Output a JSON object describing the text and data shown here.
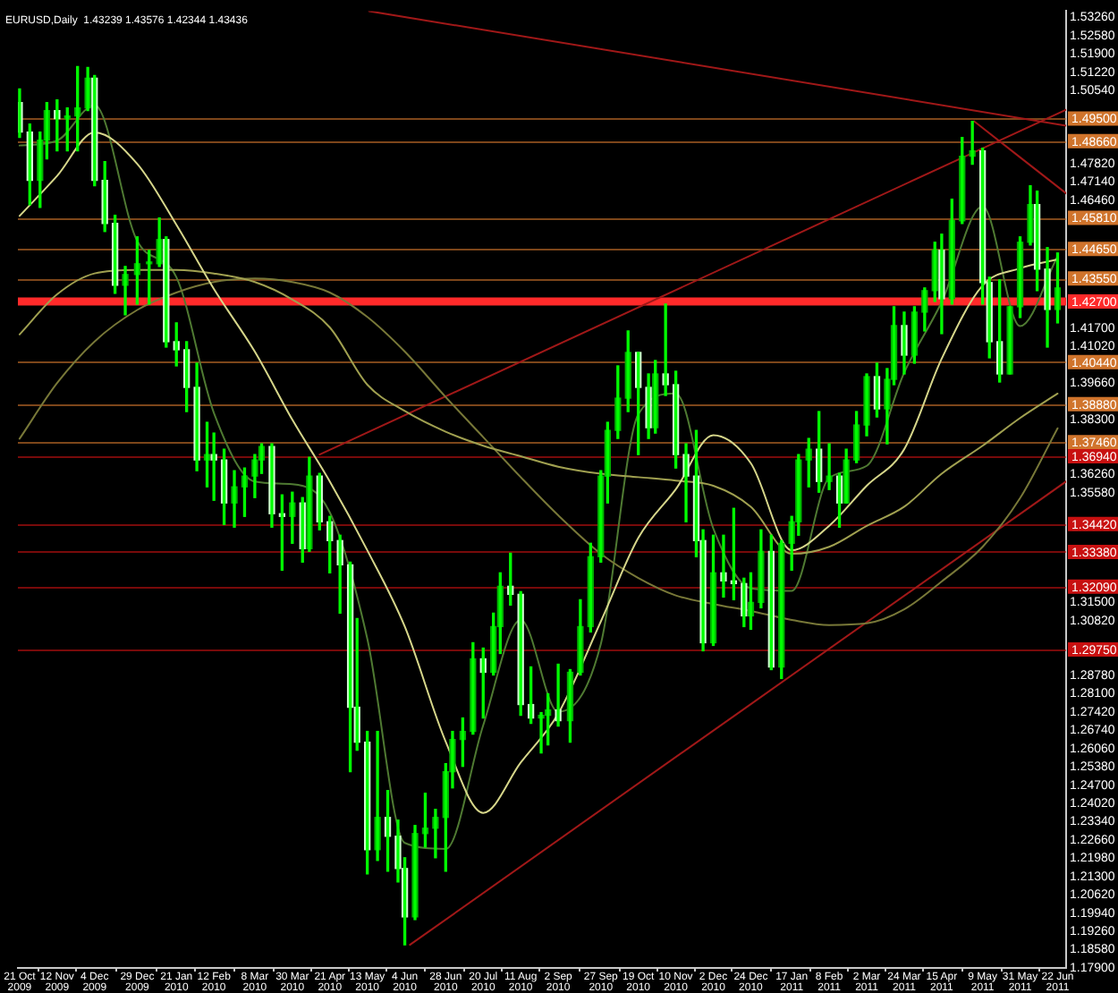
{
  "chart_data": {
    "type": "candlestick",
    "title": "EURUSD,Daily  1.43239 1.43576 1.42344 1.43436",
    "x": [
      "2009-10-21",
      "2009-10-27",
      "2009-11-02",
      "2009-11-06",
      "2009-11-12",
      "2009-11-18",
      "2009-11-24",
      "2009-11-30",
      "2009-12-04",
      "2009-12-10",
      "2009-12-16",
      "2009-12-22",
      "2009-12-29",
      "2010-01-05",
      "2010-01-11",
      "2010-01-15",
      "2010-01-21",
      "2010-01-27",
      "2010-02-02",
      "2010-02-08",
      "2010-02-12",
      "2010-02-18",
      "2010-02-24",
      "2010-03-02",
      "2010-03-08",
      "2010-03-12",
      "2010-03-18",
      "2010-03-24",
      "2010-03-30",
      "2010-04-05",
      "2010-04-09",
      "2010-04-15",
      "2010-04-21",
      "2010-04-27",
      "2010-05-03",
      "2010-05-07",
      "2010-05-13",
      "2010-05-19",
      "2010-05-25",
      "2010-05-31",
      "2010-06-04",
      "2010-06-10",
      "2010-06-16",
      "2010-06-22",
      "2010-06-28",
      "2010-07-02",
      "2010-07-08",
      "2010-07-14",
      "2010-07-20",
      "2010-07-26",
      "2010-07-30",
      "2010-08-05",
      "2010-08-11",
      "2010-08-17",
      "2010-08-23",
      "2010-08-27",
      "2010-09-02",
      "2010-09-09",
      "2010-09-15",
      "2010-09-21",
      "2010-09-27",
      "2010-10-01",
      "2010-10-07",
      "2010-10-13",
      "2010-10-19",
      "2010-10-25",
      "2010-10-29",
      "2010-11-04",
      "2010-11-10",
      "2010-11-16",
      "2010-11-22",
      "2010-11-26",
      "2010-12-02",
      "2010-12-08",
      "2010-12-14",
      "2010-12-20",
      "2010-12-24",
      "2010-12-30",
      "2011-01-05",
      "2011-01-11",
      "2011-01-17",
      "2011-01-21",
      "2011-01-27",
      "2011-02-02",
      "2011-02-08",
      "2011-02-14",
      "2011-02-18",
      "2011-02-24",
      "2011-03-02",
      "2011-03-08",
      "2011-03-14",
      "2011-03-18",
      "2011-03-24",
      "2011-03-30",
      "2011-04-05",
      "2011-04-11",
      "2011-04-15",
      "2011-04-21",
      "2011-04-27",
      "2011-05-03",
      "2011-05-09",
      "2011-05-13",
      "2011-05-19",
      "2011-05-25",
      "2011-05-31",
      "2011-06-06",
      "2011-06-10",
      "2011-06-16",
      "2011-06-22"
    ],
    "ohlc": [
      [
        1.501,
        1.506,
        1.488,
        1.49
      ],
      [
        1.49,
        1.493,
        1.463,
        1.472
      ],
      [
        1.472,
        1.49,
        1.462,
        1.487
      ],
      [
        1.487,
        1.501,
        1.48,
        1.498
      ],
      [
        1.498,
        1.502,
        1.483,
        1.495
      ],
      [
        1.495,
        1.499,
        1.483,
        1.496
      ],
      [
        1.496,
        1.5144,
        1.483,
        1.499
      ],
      [
        1.499,
        1.514,
        1.498,
        1.51
      ],
      [
        1.51,
        1.511,
        1.47,
        1.472
      ],
      [
        1.472,
        1.479,
        1.453,
        1.456
      ],
      [
        1.456,
        1.459,
        1.43,
        1.433
      ],
      [
        1.433,
        1.44,
        1.422,
        1.437
      ],
      [
        1.437,
        1.451,
        1.426,
        1.441
      ],
      [
        1.441,
        1.446,
        1.426,
        1.441
      ],
      [
        1.441,
        1.458,
        1.44,
        1.45
      ],
      [
        1.45,
        1.451,
        1.41,
        1.412
      ],
      [
        1.412,
        1.419,
        1.403,
        1.409
      ],
      [
        1.409,
        1.412,
        1.386,
        1.395
      ],
      [
        1.395,
        1.404,
        1.364,
        1.368
      ],
      [
        1.368,
        1.382,
        1.358,
        1.37
      ],
      [
        1.37,
        1.378,
        1.353,
        1.368
      ],
      [
        1.368,
        1.372,
        1.344,
        1.352
      ],
      [
        1.352,
        1.364,
        1.343,
        1.358
      ],
      [
        1.358,
        1.365,
        1.347,
        1.362
      ],
      [
        1.362,
        1.37,
        1.354,
        1.368
      ],
      [
        1.368,
        1.374,
        1.363,
        1.373
      ],
      [
        1.373,
        1.374,
        1.343,
        1.348
      ],
      [
        1.348,
        1.355,
        1.327,
        1.347
      ],
      [
        1.347,
        1.356,
        1.337,
        1.352
      ],
      [
        1.352,
        1.354,
        1.33,
        1.335
      ],
      [
        1.335,
        1.369,
        1.334,
        1.362
      ],
      [
        1.362,
        1.363,
        1.342,
        1.345
      ],
      [
        1.345,
        1.347,
        1.326,
        1.338
      ],
      [
        1.338,
        1.34,
        1.311,
        1.329
      ],
      [
        1.329,
        1.33,
        1.252,
        1.276
      ],
      [
        1.276,
        1.309,
        1.26,
        1.263
      ],
      [
        1.263,
        1.267,
        1.214,
        1.223
      ],
      [
        1.223,
        1.267,
        1.219,
        1.235
      ],
      [
        1.235,
        1.245,
        1.215,
        1.228
      ],
      [
        1.228,
        1.234,
        1.211,
        1.216
      ],
      [
        1.216,
        1.22,
        1.1876,
        1.198
      ],
      [
        1.198,
        1.232,
        1.197,
        1.229
      ],
      [
        1.229,
        1.244,
        1.224,
        1.231
      ],
      [
        1.231,
        1.238,
        1.22,
        1.235
      ],
      [
        1.235,
        1.255,
        1.215,
        1.252
      ],
      [
        1.252,
        1.267,
        1.246,
        1.264
      ],
      [
        1.264,
        1.272,
        1.254,
        1.267
      ],
      [
        1.267,
        1.3,
        1.266,
        1.294
      ],
      [
        1.294,
        1.298,
        1.272,
        1.289
      ],
      [
        1.289,
        1.311,
        1.288,
        1.306
      ],
      [
        1.306,
        1.326,
        1.296,
        1.321
      ],
      [
        1.321,
        1.3333,
        1.314,
        1.318
      ],
      [
        1.318,
        1.319,
        1.273,
        1.277
      ],
      [
        1.277,
        1.291,
        1.27,
        1.272
      ],
      [
        1.272,
        1.274,
        1.259,
        1.273
      ],
      [
        1.273,
        1.281,
        1.262,
        1.275
      ],
      [
        1.275,
        1.292,
        1.269,
        1.271
      ],
      [
        1.271,
        1.29,
        1.263,
        1.289
      ],
      [
        1.289,
        1.316,
        1.288,
        1.306
      ],
      [
        1.306,
        1.337,
        1.304,
        1.332
      ],
      [
        1.332,
        1.364,
        1.33,
        1.362
      ],
      [
        1.362,
        1.382,
        1.352,
        1.379
      ],
      [
        1.379,
        1.403,
        1.376,
        1.391
      ],
      [
        1.391,
        1.416,
        1.386,
        1.408
      ],
      [
        1.408,
        1.408,
        1.37,
        1.395
      ],
      [
        1.395,
        1.4,
        1.376,
        1.38
      ],
      [
        1.38,
        1.405,
        1.378,
        1.4
      ],
      [
        1.4,
        1.426,
        1.392,
        1.396
      ],
      [
        1.396,
        1.401,
        1.365,
        1.37
      ],
      [
        1.37,
        1.374,
        1.345,
        1.362
      ],
      [
        1.362,
        1.379,
        1.332,
        1.338
      ],
      [
        1.338,
        1.342,
        1.297,
        1.3
      ],
      [
        1.3,
        1.34,
        1.299,
        1.326
      ],
      [
        1.326,
        1.34,
        1.317,
        1.323
      ],
      [
        1.323,
        1.35,
        1.316,
        1.322
      ],
      [
        1.322,
        1.324,
        1.306,
        1.31
      ],
      [
        1.31,
        1.326,
        1.305,
        1.315
      ],
      [
        1.315,
        1.342,
        1.313,
        1.334
      ],
      [
        1.334,
        1.34,
        1.29,
        1.291
      ],
      [
        1.291,
        1.338,
        1.2867,
        1.337
      ],
      [
        1.337,
        1.347,
        1.327,
        1.345
      ],
      [
        1.345,
        1.37,
        1.34,
        1.368
      ],
      [
        1.368,
        1.376,
        1.358,
        1.372
      ],
      [
        1.372,
        1.386,
        1.356,
        1.36
      ],
      [
        1.36,
        1.374,
        1.357,
        1.362
      ],
      [
        1.362,
        1.363,
        1.343,
        1.352
      ],
      [
        1.352,
        1.372,
        1.352,
        1.368
      ],
      [
        1.368,
        1.386,
        1.367,
        1.381
      ],
      [
        1.381,
        1.4,
        1.377,
        1.399
      ],
      [
        1.399,
        1.404,
        1.384,
        1.387
      ],
      [
        1.387,
        1.402,
        1.374,
        1.398
      ],
      [
        1.398,
        1.425,
        1.396,
        1.418
      ],
      [
        1.418,
        1.423,
        1.4,
        1.407
      ],
      [
        1.407,
        1.425,
        1.404,
        1.423
      ],
      [
        1.423,
        1.432,
        1.416,
        1.431
      ],
      [
        1.431,
        1.449,
        1.427,
        1.446
      ],
      [
        1.446,
        1.452,
        1.415,
        1.428
      ],
      [
        1.428,
        1.465,
        1.426,
        1.457
      ],
      [
        1.457,
        1.488,
        1.456,
        1.481
      ],
      [
        1.481,
        1.494,
        1.478,
        1.483
      ],
      [
        1.483,
        1.484,
        1.426,
        1.434
      ],
      [
        1.434,
        1.436,
        1.406,
        1.412
      ],
      [
        1.412,
        1.435,
        1.397,
        1.4
      ],
      [
        1.4,
        1.425,
        1.4,
        1.425
      ],
      [
        1.425,
        1.451,
        1.421,
        1.449
      ],
      [
        1.449,
        1.47,
        1.448,
        1.463
      ],
      [
        1.463,
        1.468,
        1.431,
        1.439
      ],
      [
        1.439,
        1.447,
        1.41,
        1.424
      ],
      [
        1.424,
        1.445,
        1.419,
        1.432
      ]
    ],
    "color": "#00ff00",
    "colors": [
      "#d0ffd0",
      "#d0ffd0",
      "#00b400",
      "#00b400",
      "#d0ffd0",
      "#00b400",
      "#00b400",
      "#00b400",
      "#d0ffd0",
      "#d0ffd0",
      "#d0ffd0",
      "#00b400",
      "#00b400",
      "#00b400",
      "#00b400",
      "#d0ffd0",
      "#d0ffd0",
      "#d0ffd0",
      "#d0ffd0",
      "#00b400",
      "#d0ffd0",
      "#d0ffd0",
      "#00b400",
      "#00b400",
      "#00b400",
      "#00b400",
      "#d0ffd0",
      "#d0ffd0",
      "#00b400",
      "#d0ffd0",
      "#00b400",
      "#d0ffd0",
      "#d0ffd0",
      "#d0ffd0",
      "#d0ffd0",
      "#d0ffd0",
      "#d0ffd0",
      "#00b400",
      "#d0ffd0",
      "#d0ffd0",
      "#d0ffd0",
      "#00b400",
      "#00b400",
      "#00b400",
      "#00b400",
      "#00b400",
      "#00b400",
      "#00b400",
      "#d0ffd0",
      "#00b400",
      "#00b400",
      "#d0ffd0",
      "#d0ffd0",
      "#d0ffd0",
      "#00b400",
      "#00b400",
      "#d0ffd0",
      "#00b400",
      "#00b400",
      "#00b400",
      "#00b400",
      "#00b400",
      "#00b400",
      "#00b400",
      "#d0ffd0",
      "#d0ffd0",
      "#00b400",
      "#d0ffd0",
      "#d0ffd0",
      "#d0ffd0",
      "#d0ffd0",
      "#d0ffd0",
      "#00b400",
      "#d0ffd0",
      "#d0ffd0",
      "#d0ffd0",
      "#00b400",
      "#00b400",
      "#d0ffd0",
      "#00b400",
      "#00b400",
      "#00b400",
      "#00b400",
      "#d0ffd0",
      "#00b400",
      "#d0ffd0",
      "#00b400",
      "#00b400",
      "#00b400",
      "#d0ffd0",
      "#00b400",
      "#00b400",
      "#d0ffd0",
      "#00b400",
      "#00b400",
      "#00b400",
      "#d0ffd0",
      "#00b400",
      "#00b400",
      "#00b400",
      "#d0ffd0",
      "#d0ffd0",
      "#d0ffd0",
      "#00b400",
      "#00b400",
      "#00b400",
      "#d0ffd0",
      "#d0ffd0",
      "#00b400"
    ],
    "series": [
      {
        "type": "line",
        "color": "#d6d68a",
        "x": [
          "2009-10-21",
          "2009-11-12",
          "2009-12-04",
          "2009-12-29",
          "2010-01-21",
          "2010-02-12",
          "2010-03-08",
          "2010-03-30",
          "2010-04-21",
          "2010-05-13",
          "2010-06-04",
          "2010-06-28",
          "2010-07-20",
          "2010-08-11",
          "2010-09-02",
          "2010-09-27",
          "2010-10-19",
          "2010-11-10",
          "2010-12-02",
          "2010-12-24",
          "2011-01-17",
          "2011-02-08",
          "2011-03-02",
          "2011-03-24",
          "2011-04-15",
          "2011-05-09",
          "2011-05-31",
          "2011-06-22"
        ],
        "values": [
          1.4588,
          1.4737,
          1.4899,
          1.4782,
          1.4555,
          1.4316,
          1.4083,
          1.383,
          1.36,
          1.3344,
          1.306,
          1.2632,
          1.2367,
          1.2554,
          1.2736,
          1.3079,
          1.339,
          1.3571,
          1.3772,
          1.3668,
          1.3344,
          1.3435,
          1.3584,
          1.372,
          1.4057,
          1.4329,
          1.4393,
          1.4426
        ]
      },
      {
        "type": "line",
        "color": "#a0a050",
        "x": [
          "2009-10-21",
          "2009-11-12",
          "2009-12-04",
          "2009-12-29",
          "2010-01-21",
          "2010-02-12",
          "2010-03-08",
          "2010-03-30",
          "2010-04-21",
          "2010-05-13",
          "2010-06-04",
          "2010-06-28",
          "2010-07-20",
          "2010-08-11",
          "2010-09-02",
          "2010-09-27",
          "2010-10-19",
          "2010-11-10",
          "2010-12-02",
          "2010-12-24",
          "2011-01-17",
          "2011-02-08",
          "2011-03-02",
          "2011-03-24",
          "2011-04-15",
          "2011-05-09",
          "2011-05-31",
          "2011-06-22"
        ],
        "values": [
          1.4147,
          1.4296,
          1.4374,
          1.4387,
          1.4387,
          1.4374,
          1.4342,
          1.4277,
          1.4173,
          1.396,
          1.3862,
          1.3785,
          1.3733,
          1.3694,
          1.3655,
          1.3629,
          1.3616,
          1.3603,
          1.3584,
          1.3506,
          1.3331,
          1.3357,
          1.3435,
          1.3506,
          1.3629,
          1.3733,
          1.3836,
          1.3927
        ]
      },
      {
        "type": "line",
        "color": "#787838",
        "x": [
          "2009-10-21",
          "2009-11-12",
          "2009-12-04",
          "2009-12-29",
          "2010-01-21",
          "2010-02-12",
          "2010-03-08",
          "2010-03-30",
          "2010-04-21",
          "2010-05-13",
          "2010-06-04",
          "2010-06-28",
          "2010-07-20",
          "2010-08-11",
          "2010-09-02",
          "2010-09-27",
          "2010-10-19",
          "2010-11-10",
          "2010-12-02",
          "2010-12-24",
          "2011-01-17",
          "2011-02-08",
          "2011-03-02",
          "2011-03-24",
          "2011-04-15",
          "2011-05-09",
          "2011-05-31",
          "2011-06-22"
        ],
        "values": [
          1.3759,
          1.3966,
          1.4121,
          1.4238,
          1.4303,
          1.4342,
          1.4355,
          1.4342,
          1.4303,
          1.4212,
          1.4083,
          1.3914,
          1.3765,
          1.3616,
          1.3474,
          1.3331,
          1.3241,
          1.3176,
          1.3144,
          1.3118,
          1.3085,
          1.3066,
          1.3072,
          1.3124,
          1.3228,
          1.3357,
          1.3538,
          1.3798
        ]
      },
      {
        "type": "line",
        "color": "#4f7a32",
        "x": [
          "2009-10-21",
          "2009-11-12",
          "2009-12-04",
          "2009-12-29",
          "2010-01-21",
          "2010-02-12",
          "2010-03-08",
          "2010-03-30",
          "2010-04-21",
          "2010-05-13",
          "2010-06-04",
          "2010-06-28",
          "2010-07-20",
          "2010-08-11",
          "2010-09-02",
          "2010-09-27",
          "2010-10-19",
          "2010-11-10",
          "2010-12-02",
          "2010-12-24",
          "2011-01-17",
          "2011-02-08",
          "2011-03-02",
          "2011-03-24",
          "2011-04-15",
          "2011-05-09",
          "2011-05-31",
          "2011-06-22"
        ],
        "values": [
          1.485,
          1.4868,
          1.5,
          1.4495,
          1.436,
          1.3855,
          1.36,
          1.359,
          1.3485,
          1.3015,
          1.2255,
          1.2233,
          1.2693,
          1.3085,
          1.2743,
          1.2995,
          1.385,
          1.3928,
          1.3425,
          1.3203,
          1.3193,
          1.3613,
          1.3658,
          1.4005,
          1.4268,
          1.4623,
          1.4178,
          1.4438
        ]
      },
      {
        "type": "line",
        "color": "#a01818",
        "x": [
          "2010-05-14",
          "2011-06-27"
        ],
        "values": [
          1.535,
          1.4924
        ]
      },
      {
        "type": "line",
        "color": "#a01818",
        "x": [
          "2010-04-15",
          "2011-06-27"
        ],
        "values": [
          1.37,
          1.4983
        ]
      },
      {
        "type": "line",
        "color": "#a01818",
        "x": [
          "2010-06-07",
          "2011-06-27"
        ],
        "values": [
          1.1876,
          1.36
        ]
      },
      {
        "type": "line",
        "color": "#a01818",
        "x": [
          "2011-05-04",
          "2011-06-27"
        ],
        "values": [
          1.494,
          1.4672
        ]
      }
    ],
    "xlim": [
      "2009-10-20",
      "2011-06-27"
    ],
    "xticks": [
      {
        "value": "2009-10-21",
        "label": "21 Oct 2009"
      },
      {
        "value": "2009-11-12",
        "label": "12 Nov 2009"
      },
      {
        "value": "2009-12-04",
        "label": "4 Dec 2009"
      },
      {
        "value": "2009-12-29",
        "label": "29 Dec 2009"
      },
      {
        "value": "2010-01-21",
        "label": "21 Jan 2010"
      },
      {
        "value": "2010-02-12",
        "label": "12 Feb 2010"
      },
      {
        "value": "2010-03-08",
        "label": "8 Mar 2010"
      },
      {
        "value": "2010-03-30",
        "label": "30 Mar 2010"
      },
      {
        "value": "2010-04-21",
        "label": "21 Apr 2010"
      },
      {
        "value": "2010-05-13",
        "label": "13 May 2010"
      },
      {
        "value": "2010-06-04",
        "label": "4 Jun 2010"
      },
      {
        "value": "2010-06-28",
        "label": "28 Jun 2010"
      },
      {
        "value": "2010-07-20",
        "label": "20 Jul 2010"
      },
      {
        "value": "2010-08-11",
        "label": "11 Aug 2010"
      },
      {
        "value": "2010-09-02",
        "label": "2 Sep 2010"
      },
      {
        "value": "2010-09-27",
        "label": "27 Sep 2010"
      },
      {
        "value": "2010-10-19",
        "label": "19 Oct 2010"
      },
      {
        "value": "2010-11-10",
        "label": "10 Nov 2010"
      },
      {
        "value": "2010-12-02",
        "label": "2 Dec 2010"
      },
      {
        "value": "2010-12-24",
        "label": "24 Dec 2010"
      },
      {
        "value": "2011-01-17",
        "label": "17 Jan 2011"
      },
      {
        "value": "2011-02-08",
        "label": "8 Feb 2011"
      },
      {
        "value": "2011-03-02",
        "label": "2 Mar 2011"
      },
      {
        "value": "2011-03-24",
        "label": "24 Mar 2011"
      },
      {
        "value": "2011-04-15",
        "label": "15 Apr 2011"
      },
      {
        "value": "2011-05-09",
        "label": "9 May 2011"
      },
      {
        "value": "2011-05-31",
        "label": "31 May 2011"
      },
      {
        "value": "2011-06-22",
        "label": "22 Jun 2011"
      }
    ],
    "ylim": [
      1.179,
      1.535
    ],
    "yticks": [
      {
        "value": 1.179,
        "label": "1.17900"
      },
      {
        "value": 1.1858,
        "label": "1.18580"
      },
      {
        "value": 1.1926,
        "label": "1.19260"
      },
      {
        "value": 1.1994,
        "label": "1.19940"
      },
      {
        "value": 1.2062,
        "label": "1.20620"
      },
      {
        "value": 1.213,
        "label": "1.21300"
      },
      {
        "value": 1.2198,
        "label": "1.21980"
      },
      {
        "value": 1.2266,
        "label": "1.22660"
      },
      {
        "value": 1.2334,
        "label": "1.23340"
      },
      {
        "value": 1.2402,
        "label": "1.24020"
      },
      {
        "value": 1.247,
        "label": "1.24700"
      },
      {
        "value": 1.2538,
        "label": "1.25380"
      },
      {
        "value": 1.2606,
        "label": "1.26060"
      },
      {
        "value": 1.2674,
        "label": "1.26740"
      },
      {
        "value": 1.2742,
        "label": "1.27420"
      },
      {
        "value": 1.281,
        "label": "1.28100"
      },
      {
        "value": 1.2878,
        "label": "1.28780"
      },
      {
        "value": 1.3082,
        "label": "1.30820"
      },
      {
        "value": 1.315,
        "label": "1.31500"
      },
      {
        "value": 1.3558,
        "label": "1.35580"
      },
      {
        "value": 1.3626,
        "label": "1.36260"
      },
      {
        "value": 1.383,
        "label": "1.38300"
      },
      {
        "value": 1.3966,
        "label": "1.39660"
      },
      {
        "value": 1.4102,
        "label": "1.41020"
      },
      {
        "value": 1.417,
        "label": "1.41700"
      },
      {
        "value": 1.4646,
        "label": "1.46460"
      },
      {
        "value": 1.4714,
        "label": "1.47140"
      },
      {
        "value": 1.4782,
        "label": "1.47820"
      },
      {
        "value": 1.5054,
        "label": "1.50540"
      },
      {
        "value": 1.5122,
        "label": "1.51220"
      },
      {
        "value": 1.519,
        "label": "1.51900"
      },
      {
        "value": 1.5258,
        "label": "1.52580"
      },
      {
        "value": 1.5326,
        "label": "1.53260"
      }
    ],
    "ref_lines": [
      {
        "axis": "y",
        "value": 1.495,
        "label": "1.49500",
        "color": "#d0742c"
      },
      {
        "axis": "y",
        "value": 1.4866,
        "label": "1.48660",
        "color": "#d0742c"
      },
      {
        "axis": "y",
        "value": 1.4581,
        "label": "1.45810",
        "color": "#d0742c"
      },
      {
        "axis": "y",
        "value": 1.4465,
        "label": "1.44650",
        "color": "#d0742c"
      },
      {
        "axis": "y",
        "value": 1.4355,
        "label": "1.43550",
        "color": "#d0742c"
      },
      {
        "axis": "y",
        "value": 1.4044,
        "label": "1.40440",
        "color": "#d0742c"
      },
      {
        "axis": "y",
        "value": 1.3888,
        "label": "1.38880",
        "color": "#d0742c"
      },
      {
        "axis": "y",
        "value": 1.3746,
        "label": "1.37460",
        "color": "#d0742c"
      },
      {
        "axis": "y",
        "value": 1.3694,
        "label": "1.36940",
        "color": "#c81010"
      },
      {
        "axis": "y",
        "value": 1.3442,
        "label": "1.34420",
        "color": "#c81010"
      },
      {
        "axis": "y",
        "value": 1.3338,
        "label": "1.33380",
        "color": "#c81010"
      },
      {
        "axis": "y",
        "value": 1.3209,
        "label": "1.32090",
        "color": "#c81010"
      },
      {
        "axis": "y",
        "value": 1.2975,
        "label": "1.29750",
        "color": "#c81010"
      }
    ],
    "bands": [
      {
        "axis": "y",
        "from": 1.4255,
        "to": 1.4285,
        "label": "1.42700",
        "color": "#ff2a2a"
      }
    ]
  }
}
